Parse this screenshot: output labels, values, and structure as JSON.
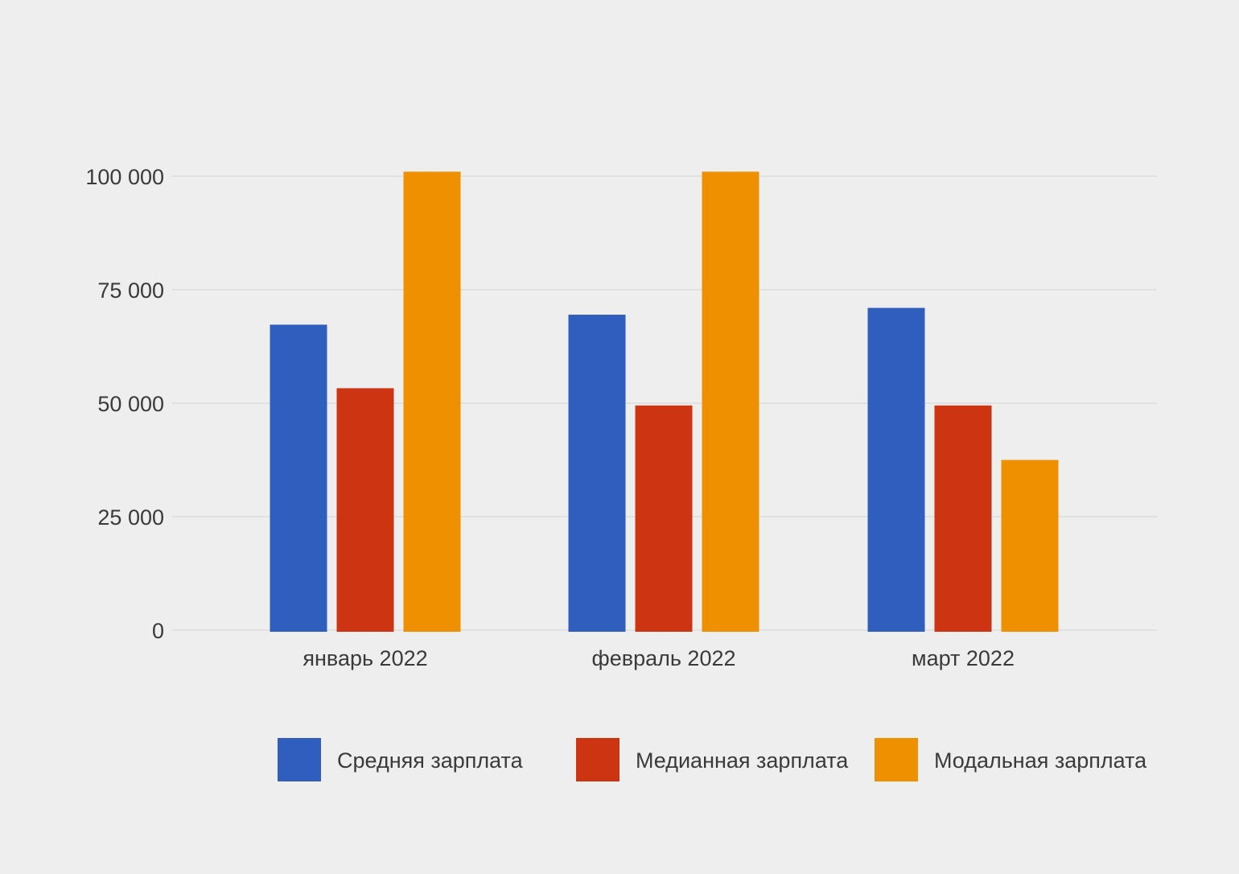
{
  "chart_data": {
    "type": "bar",
    "title": "",
    "xlabel": "",
    "ylabel": "",
    "categories": [
      "январь 2022",
      "февраль 2022",
      "март 2022"
    ],
    "series": [
      {
        "name": "Средняя зарплата",
        "color": "#305ebe",
        "values": [
          67300,
          69500,
          71000
        ]
      },
      {
        "name": "Медианная зарплата",
        "color": "#cd3412",
        "values": [
          53300,
          49500,
          49500
        ]
      },
      {
        "name": "Модальная зарплата",
        "color": "#ee9000",
        "values": [
          101000,
          101000,
          37500
        ]
      }
    ],
    "ylim": [
      0,
      100000
    ],
    "yticks": [
      0,
      25000,
      50000,
      75000,
      100000
    ],
    "ytick_labels": [
      "0",
      "25 000",
      "50 000",
      "75 000",
      "100 000"
    ],
    "grid": true,
    "legend_position": "bottom"
  }
}
